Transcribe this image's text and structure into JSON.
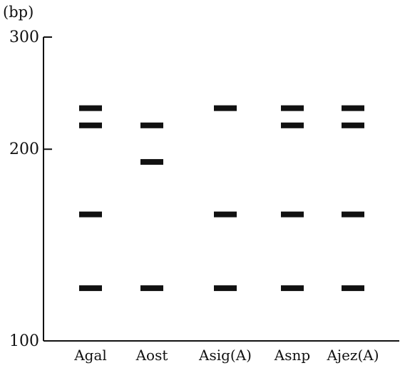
{
  "chart_data": {
    "type": "scatter",
    "title": "",
    "ylabel": "(bp)",
    "xlabel": "",
    "ylim": [
      100,
      300
    ],
    "yscale": "log",
    "yticks": [
      100,
      200,
      300
    ],
    "grid": false,
    "legend": "none",
    "mark_style": "horizontal-band",
    "band_color": "#111111",
    "categories": [
      "Agal",
      "Aost",
      "Asig(A)",
      "Asnp",
      "Ajez(A)"
    ],
    "lanes": [
      {
        "name": "Agal",
        "bands_bp": [
          232,
          218,
          158,
          121
        ]
      },
      {
        "name": "Aost",
        "bands_bp": [
          218,
          191,
          121
        ]
      },
      {
        "name": "Asig(A)",
        "bands_bp": [
          232,
          158,
          121
        ]
      },
      {
        "name": "Asnp",
        "bands_bp": [
          232,
          218,
          158,
          121
        ]
      },
      {
        "name": "Ajez(A)",
        "bands_bp": [
          232,
          218,
          158,
          121
        ]
      }
    ]
  }
}
